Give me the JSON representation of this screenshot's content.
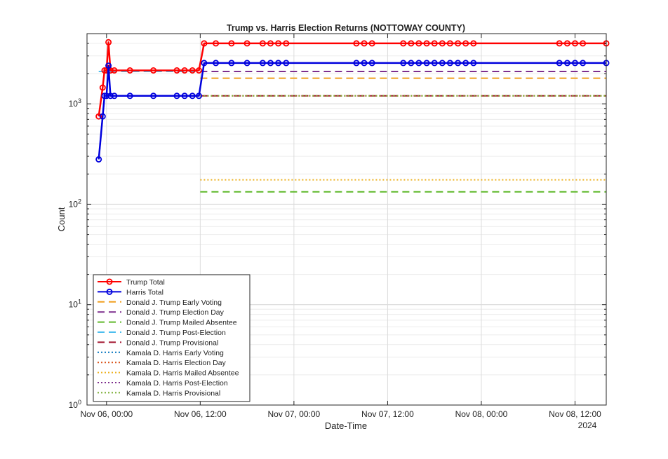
{
  "chart_data": {
    "type": "line",
    "title": "Trump vs. Harris Election Returns (NOTTOWAY COUNTY)",
    "xlabel": "Date-Time",
    "ylabel": "Count",
    "y_scale": "log",
    "ylim": [
      1,
      5000
    ],
    "xlim": [
      "2024-11-05T21:30",
      "2024-11-08T16:00"
    ],
    "x_ticks": [
      {
        "t": "2024-11-06T00:00",
        "label": "Nov 06, 00:00"
      },
      {
        "t": "2024-11-06T12:00",
        "label": "Nov 06, 12:00"
      },
      {
        "t": "2024-11-07T00:00",
        "label": "Nov 07, 00:00"
      },
      {
        "t": "2024-11-07T12:00",
        "label": "Nov 07, 12:00"
      },
      {
        "t": "2024-11-08T00:00",
        "label": "Nov 08, 00:00"
      },
      {
        "t": "2024-11-08T12:00",
        "label": "Nov 08, 12:00"
      }
    ],
    "x_secondary_label": "2024",
    "y_ticks": [
      {
        "v": 1,
        "label": "10",
        "sup": "0"
      },
      {
        "v": 10,
        "label": "10",
        "sup": "1"
      },
      {
        "v": 100,
        "label": "10",
        "sup": "2"
      },
      {
        "v": 1000,
        "label": "10",
        "sup": "3"
      }
    ],
    "grid": true,
    "legend_position": "bottom-left",
    "series": [
      {
        "name": "Trump Total",
        "color": "#ff0000",
        "style": "solid",
        "marker": "circle",
        "x": [
          "2024-11-05T23:00",
          "2024-11-05T23:30",
          "2024-11-05T23:45",
          "2024-11-06T00:00",
          "2024-11-06T00:15",
          "2024-11-06T00:30",
          "2024-11-06T01:00",
          "2024-11-06T03:00",
          "2024-11-06T06:00",
          "2024-11-06T09:00",
          "2024-11-06T10:00",
          "2024-11-06T11:00",
          "2024-11-06T11:50",
          "2024-11-06T12:30",
          "2024-11-06T14:00",
          "2024-11-06T16:00",
          "2024-11-06T18:00",
          "2024-11-06T20:00",
          "2024-11-06T21:00",
          "2024-11-06T22:00",
          "2024-11-06T23:00",
          "2024-11-07T08:00",
          "2024-11-07T09:00",
          "2024-11-07T10:00",
          "2024-11-07T14:00",
          "2024-11-07T15:00",
          "2024-11-07T16:00",
          "2024-11-07T17:00",
          "2024-11-07T18:00",
          "2024-11-07T19:00",
          "2024-11-07T20:00",
          "2024-11-07T21:00",
          "2024-11-07T22:00",
          "2024-11-07T23:00",
          "2024-11-08T10:00",
          "2024-11-08T11:00",
          "2024-11-08T12:00",
          "2024-11-08T13:00",
          "2024-11-08T16:00"
        ],
        "y": [
          750,
          1450,
          2150,
          2150,
          4100,
          2150,
          2150,
          2150,
          2150,
          2150,
          2150,
          2150,
          2150,
          4000,
          4000,
          4000,
          4000,
          4000,
          4000,
          4000,
          4000,
          4000,
          4000,
          4000,
          4000,
          4000,
          4000,
          4000,
          4000,
          4000,
          4000,
          4000,
          4000,
          4000,
          4000,
          4000,
          4000,
          4000,
          4000
        ]
      },
      {
        "name": "Harris Total",
        "color": "#0000dd",
        "style": "solid",
        "marker": "circle",
        "x": [
          "2024-11-05T23:00",
          "2024-11-05T23:30",
          "2024-11-05T23:45",
          "2024-11-06T00:00",
          "2024-11-06T00:15",
          "2024-11-06T00:30",
          "2024-11-06T01:00",
          "2024-11-06T03:00",
          "2024-11-06T06:00",
          "2024-11-06T09:00",
          "2024-11-06T10:00",
          "2024-11-06T11:00",
          "2024-11-06T11:50",
          "2024-11-06T12:30",
          "2024-11-06T14:00",
          "2024-11-06T16:00",
          "2024-11-06T18:00",
          "2024-11-06T20:00",
          "2024-11-06T21:00",
          "2024-11-06T22:00",
          "2024-11-06T23:00",
          "2024-11-07T08:00",
          "2024-11-07T09:00",
          "2024-11-07T10:00",
          "2024-11-07T14:00",
          "2024-11-07T15:00",
          "2024-11-07T16:00",
          "2024-11-07T17:00",
          "2024-11-07T18:00",
          "2024-11-07T19:00",
          "2024-11-07T20:00",
          "2024-11-07T21:00",
          "2024-11-07T22:00",
          "2024-11-07T23:00",
          "2024-11-08T10:00",
          "2024-11-08T11:00",
          "2024-11-08T12:00",
          "2024-11-08T13:00",
          "2024-11-08T16:00"
        ],
        "y": [
          280,
          750,
          1200,
          1200,
          2400,
          1200,
          1200,
          1200,
          1200,
          1200,
          1200,
          1200,
          1200,
          2550,
          2550,
          2550,
          2550,
          2550,
          2550,
          2550,
          2550,
          2550,
          2550,
          2550,
          2550,
          2550,
          2550,
          2550,
          2550,
          2550,
          2550,
          2550,
          2550,
          2550,
          2550,
          2550,
          2550,
          2550,
          2550
        ]
      },
      {
        "name": "Donald J. Trump Early Voting",
        "color": "#f0a020",
        "style": "dashed",
        "x": [
          "2024-11-06T12:00",
          "2024-11-08T16:00"
        ],
        "y": [
          1800,
          1800
        ]
      },
      {
        "name": "Donald J. Trump Election Day",
        "color": "#7e2f8e",
        "style": "dashed",
        "x": [
          "2024-11-06T12:00",
          "2024-11-08T16:00"
        ],
        "y": [
          2100,
          2100
        ]
      },
      {
        "name": "Donald J. Trump Mailed Absentee",
        "color": "#5fb82a",
        "style": "dashed",
        "x": [
          "2024-11-06T12:00",
          "2024-11-08T16:00"
        ],
        "y": [
          133,
          133
        ]
      },
      {
        "name": "Donald J. Trump Post-Election",
        "color": "#4dbeee",
        "style": "dashed",
        "x": [
          "2024-11-05T23:00",
          "2024-11-06T11:50"
        ],
        "y": [
          2100,
          2100
        ]
      },
      {
        "name": "Donald J. Trump Provisional",
        "color": "#a2142f",
        "style": "dashed",
        "x": [
          "2024-11-06T12:00",
          "2024-11-08T16:00"
        ],
        "y": [
          1200,
          1200
        ]
      },
      {
        "name": "Kamala D. Harris Early Voting",
        "color": "#0072bd",
        "style": "dotted",
        "x": [
          "2024-11-05T23:00",
          "2024-11-05T23:30",
          "2024-11-05T23:45",
          "2024-11-06T11:50"
        ],
        "y": [
          280,
          750,
          1200,
          1200
        ]
      },
      {
        "name": "Kamala D. Harris Election Day",
        "color": "#d95319",
        "style": "dotted",
        "x": [
          "2024-11-06T12:00",
          "2024-11-08T16:00"
        ],
        "y": [
          1200,
          1200
        ]
      },
      {
        "name": "Kamala D. Harris Mailed Absentee",
        "color": "#edb120",
        "style": "dotted",
        "x": [
          "2024-11-06T12:00",
          "2024-11-08T16:00"
        ],
        "y": [
          175,
          175
        ]
      },
      {
        "name": "Kamala D. Harris Post-Election",
        "color": "#7e2f8e",
        "style": "dotted",
        "x": [
          "2024-11-05T23:00",
          "2024-11-05T23:30",
          "2024-11-05T23:45",
          "2024-11-06T11:50"
        ],
        "y": [
          280,
          750,
          1200,
          1200
        ]
      },
      {
        "name": "Kamala D. Harris Provisional",
        "color": "#77ac30",
        "style": "dotted",
        "x": [
          "2024-11-06T12:00",
          "2024-11-08T16:00"
        ],
        "y": [
          1200,
          1200
        ]
      }
    ]
  }
}
